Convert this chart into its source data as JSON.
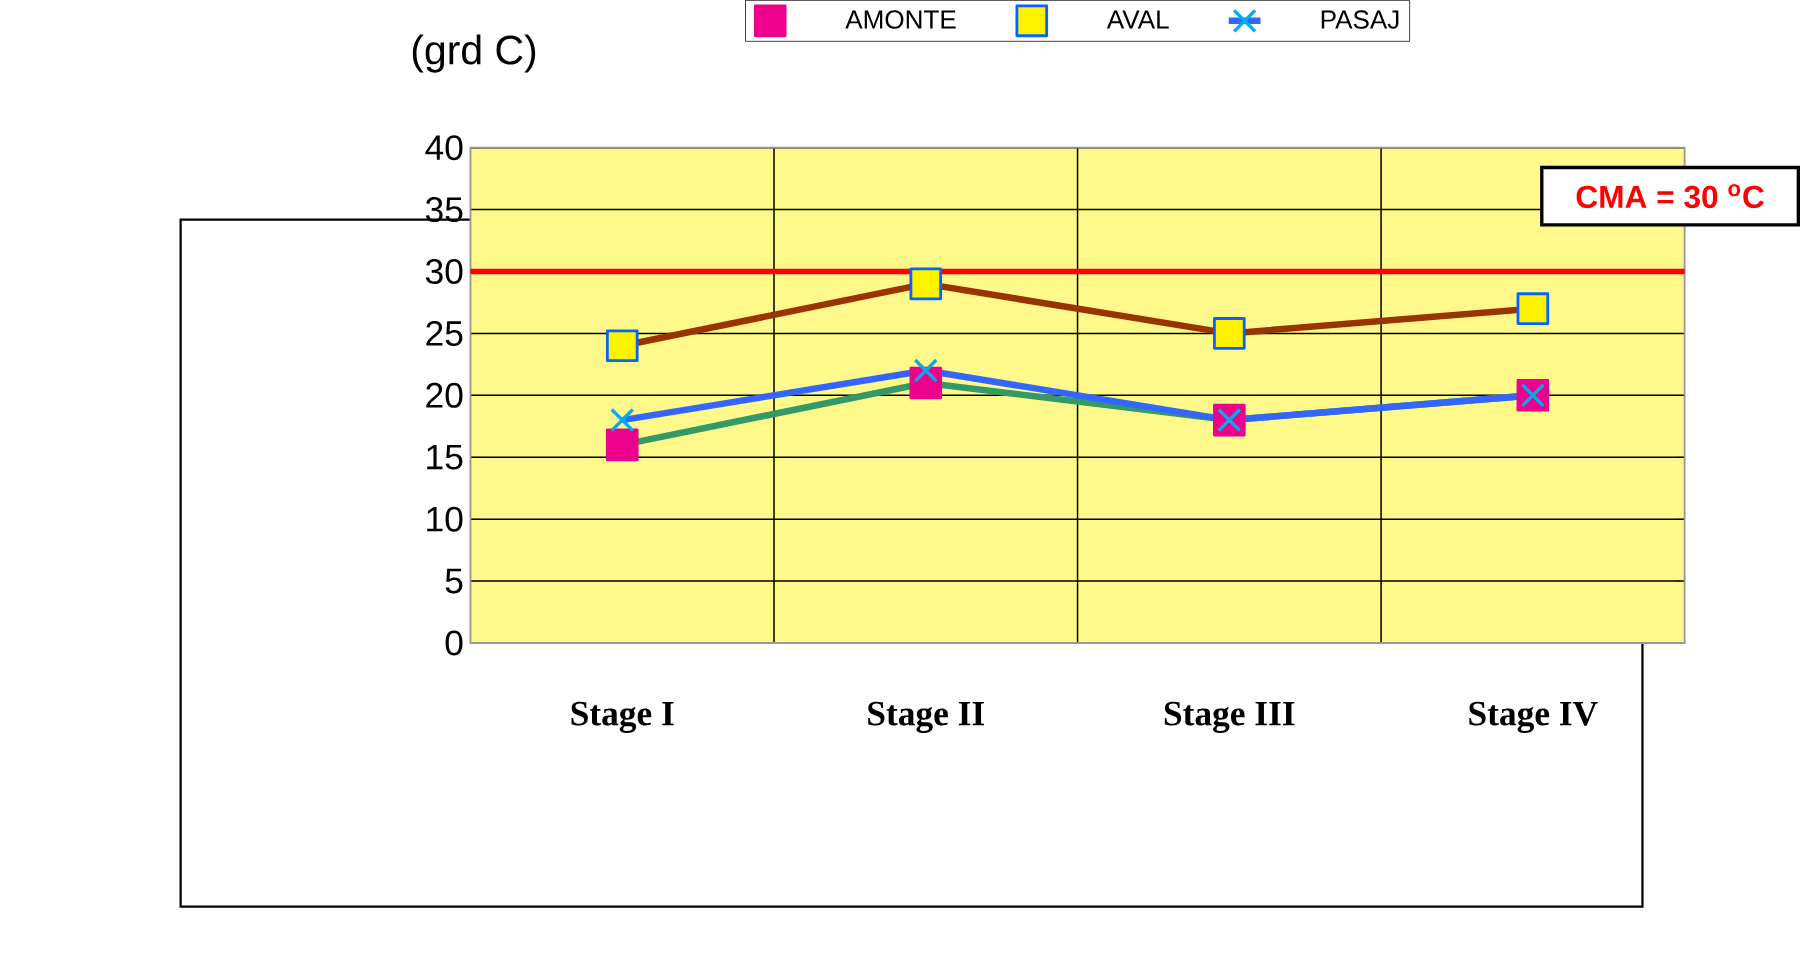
{
  "chart_data": {
    "type": "line",
    "ylabel": "(grd C)",
    "categories": [
      "Stage  I",
      "Stage II",
      "Stage III",
      "Stage IV"
    ],
    "series": [
      {
        "name": "AMONTE",
        "color": "#339966",
        "marker": "square",
        "values": [
          16,
          21,
          18,
          20
        ]
      },
      {
        "name": "AVAL",
        "color": "#993300",
        "marker": "square",
        "values": [
          24,
          29,
          25,
          27
        ]
      },
      {
        "name": "PASAJ",
        "color": "#3366ff",
        "marker": "cross",
        "values": [
          18,
          22,
          18,
          20
        ]
      }
    ],
    "ylim": [
      0,
      40
    ],
    "yticks": [
      0,
      5,
      10,
      15,
      20,
      25,
      30,
      35,
      40
    ],
    "ref_lines": [
      {
        "axis": "y",
        "value": 30,
        "label": "CMA = 30 $^{o}$C",
        "color": "#ff0000"
      }
    ],
    "grid": true,
    "legend": "top"
  }
}
